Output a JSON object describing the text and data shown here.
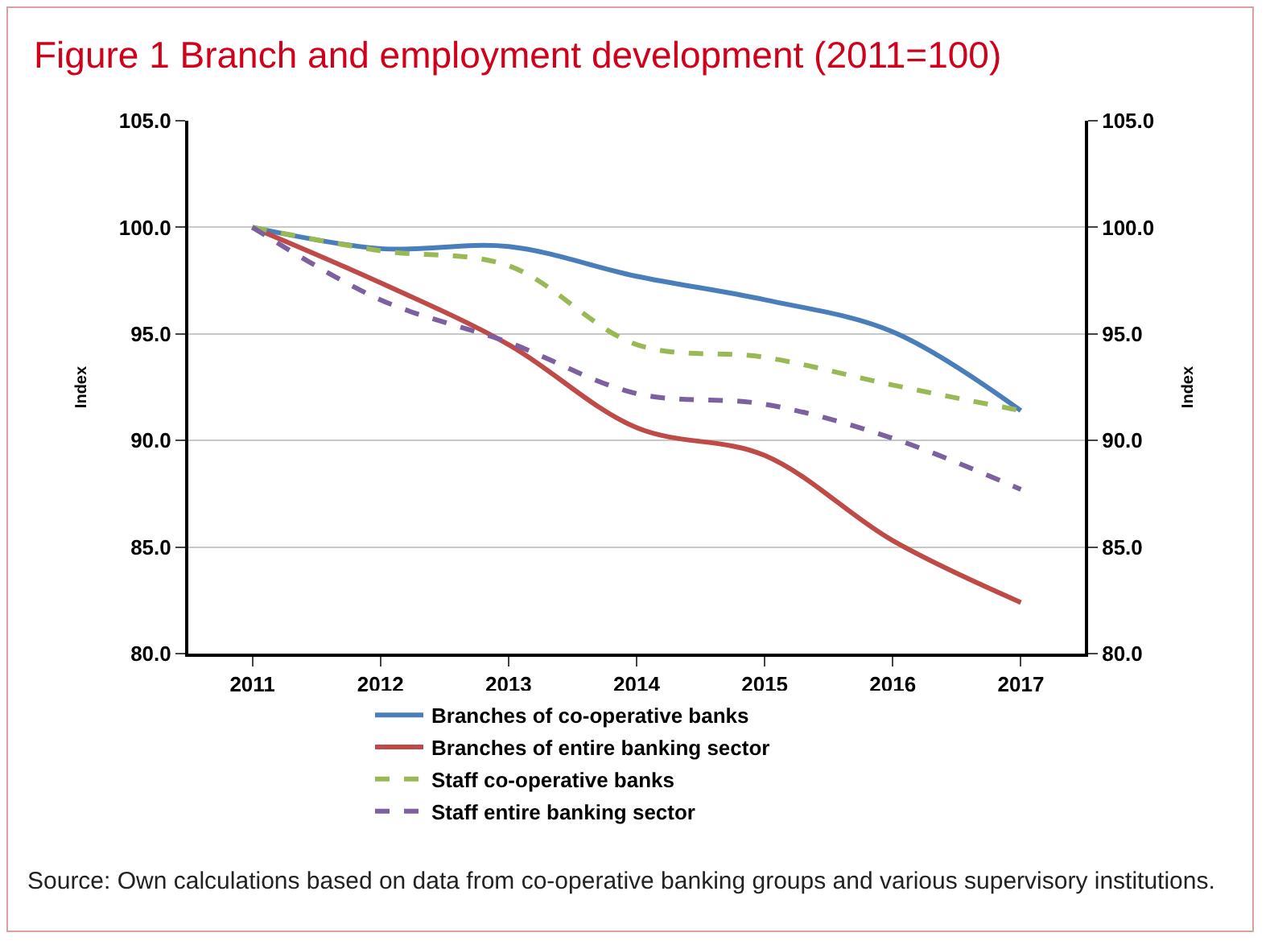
{
  "chart_data": {
    "type": "line",
    "title": "Figure 1 Branch and employment development (2011=100)",
    "ylabel": "Index",
    "y2label": "Index",
    "categories": [
      "2011",
      "2012",
      "2013",
      "2014",
      "2015",
      "2016",
      "2017"
    ],
    "series": [
      {
        "name": "Branches of co-operative banks",
        "color": "#4a7ebb",
        "line_style": "solid",
        "values": [
          100,
          99.0,
          99.1,
          97.7,
          96.6,
          95.1,
          91.4
        ]
      },
      {
        "name": "Branches of entire banking sector",
        "color": "#be4b48",
        "line_style": "solid",
        "values": [
          100,
          97.4,
          94.5,
          90.6,
          89.3,
          85.3,
          82.4
        ]
      },
      {
        "name": "Staff co-operative banks",
        "color": "#98b954",
        "line_style": "dashed",
        "values": [
          100,
          98.9,
          98.2,
          94.5,
          93.9,
          92.6,
          91.4
        ]
      },
      {
        "name": "Staff entire banking sector",
        "color": "#7d60a0",
        "line_style": "dashed",
        "values": [
          100,
          96.6,
          94.6,
          92.2,
          91.7,
          90.1,
          87.7
        ]
      }
    ],
    "ylim": [
      80,
      105
    ],
    "yticks": [
      {
        "value": 80,
        "label": "80.0"
      },
      {
        "value": 85,
        "label": "85.0"
      },
      {
        "value": 90,
        "label": "90.0"
      },
      {
        "value": 95,
        "label": "95.0"
      },
      {
        "value": 100,
        "label": "100.0"
      },
      {
        "value": 105,
        "label": "105.0"
      }
    ],
    "y2lim": [
      80,
      105
    ],
    "y2ticks": [
      {
        "value": 80,
        "label": "80.0"
      },
      {
        "value": 85,
        "label": "85.0"
      },
      {
        "value": 90,
        "label": "90.0"
      },
      {
        "value": 95,
        "label": "95.0"
      },
      {
        "value": 100,
        "label": "100.0"
      },
      {
        "value": 105,
        "label": "105.0"
      }
    ],
    "grid": "y",
    "legend": "bottom",
    "marker": "none",
    "annotations": [
      "Source: Own calculations based on data from co-operative banking groups and various supervisory institutions."
    ]
  }
}
